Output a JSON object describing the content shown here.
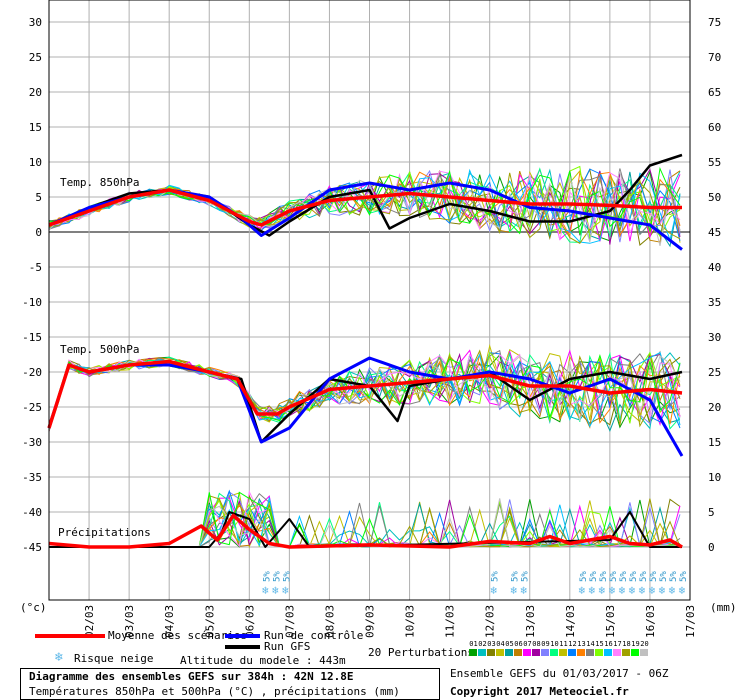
{
  "chart_data": {
    "type": "line",
    "title": "Diagramme des ensembles GEFS sur 384h : 42N 12.8E",
    "subtitle": "Températures 850hPa et 500hPa (°C) , précipitations (mm)",
    "left_axis_label": "(°c)",
    "right_axis_label": "(mm)",
    "left_ticks": [
      30,
      25,
      20,
      15,
      10,
      5,
      0,
      -5,
      -10,
      -15,
      -20,
      -25,
      -30,
      -35,
      -40,
      -45
    ],
    "right_ticks": [
      75,
      70,
      65,
      60,
      55,
      50,
      45,
      40,
      35,
      30,
      25,
      20,
      15,
      10,
      5,
      0
    ],
    "x_ticks": [
      "02/03",
      "03/03",
      "04/03",
      "05/03",
      "06/03",
      "07/03",
      "08/03",
      "09/03",
      "10/03",
      "11/03",
      "12/03",
      "13/03",
      "14/03",
      "15/03",
      "16/03",
      "17/03"
    ],
    "labels": {
      "t850": "Temp. 850hPa",
      "t500": "Temp. 500hPa",
      "precip": "Précipitations"
    },
    "ensemble_mean_850": [
      [
        0,
        1
      ],
      [
        1,
        3
      ],
      [
        2,
        5
      ],
      [
        3,
        6
      ],
      [
        4,
        4.5
      ],
      [
        4.5,
        3
      ],
      [
        5,
        1.5
      ],
      [
        5.3,
        1
      ],
      [
        6,
        3
      ],
      [
        7,
        4.5
      ],
      [
        8,
        5
      ],
      [
        9,
        5.5
      ],
      [
        10,
        5
      ],
      [
        11,
        4.5
      ],
      [
        12,
        4
      ],
      [
        13,
        4
      ],
      [
        14,
        3.8
      ],
      [
        15,
        3.5
      ],
      [
        15.8,
        3.5
      ]
    ],
    "control_run_850": [
      [
        0,
        1
      ],
      [
        1,
        3.5
      ],
      [
        2,
        5
      ],
      [
        3,
        6
      ],
      [
        4,
        5
      ],
      [
        4.8,
        2
      ],
      [
        5.3,
        -0.5
      ],
      [
        6,
        2
      ],
      [
        7,
        6
      ],
      [
        8,
        7
      ],
      [
        9,
        6
      ],
      [
        10,
        7
      ],
      [
        11,
        6
      ],
      [
        12,
        3.5
      ],
      [
        13,
        3
      ],
      [
        14,
        2
      ],
      [
        15,
        1
      ],
      [
        15.8,
        -2.5
      ]
    ],
    "gfs_run_850": [
      [
        0,
        1
      ],
      [
        1,
        3.5
      ],
      [
        2,
        5.5
      ],
      [
        3,
        6
      ],
      [
        4,
        5
      ],
      [
        5,
        1
      ],
      [
        5.5,
        -0.5
      ],
      [
        6,
        1.5
      ],
      [
        7,
        5
      ],
      [
        8,
        6
      ],
      [
        8.5,
        0.5
      ],
      [
        9,
        2
      ],
      [
        10,
        4
      ],
      [
        11,
        3
      ],
      [
        12,
        1.5
      ],
      [
        13,
        1.5
      ],
      [
        14,
        3
      ],
      [
        14.5,
        6
      ],
      [
        15,
        9.5
      ],
      [
        15.8,
        11
      ]
    ],
    "ensemble_mean_500": [
      [
        0,
        -28
      ],
      [
        0.5,
        -19
      ],
      [
        1,
        -20
      ],
      [
        2,
        -19
      ],
      [
        3,
        -18.5
      ],
      [
        4,
        -20
      ],
      [
        4.7,
        -21
      ],
      [
        5.2,
        -26
      ],
      [
        5.7,
        -26
      ],
      [
        6,
        -25
      ],
      [
        7,
        -22.5
      ],
      [
        8,
        -22
      ],
      [
        9,
        -21.5
      ],
      [
        10,
        -21
      ],
      [
        11,
        -20.5
      ],
      [
        12,
        -22
      ],
      [
        13,
        -22
      ],
      [
        14,
        -23
      ],
      [
        15,
        -22.5
      ],
      [
        15.8,
        -23
      ]
    ],
    "control_run_500": [
      [
        0,
        -28
      ],
      [
        0.5,
        -19
      ],
      [
        1,
        -20
      ],
      [
        2,
        -19
      ],
      [
        3,
        -19
      ],
      [
        4,
        -20
      ],
      [
        4.7,
        -21
      ],
      [
        5.3,
        -30
      ],
      [
        6,
        -28
      ],
      [
        7,
        -21
      ],
      [
        8,
        -18
      ],
      [
        9,
        -20
      ],
      [
        10,
        -21
      ],
      [
        11,
        -20
      ],
      [
        12,
        -21
      ],
      [
        13,
        -23
      ],
      [
        14,
        -21
      ],
      [
        15,
        -24
      ],
      [
        15.8,
        -32
      ]
    ],
    "gfs_run_500": [
      [
        0,
        -28
      ],
      [
        0.5,
        -19
      ],
      [
        1,
        -20
      ],
      [
        2,
        -19
      ],
      [
        3,
        -18.5
      ],
      [
        4,
        -20
      ],
      [
        4.8,
        -21
      ],
      [
        5.3,
        -30
      ],
      [
        6,
        -26
      ],
      [
        7,
        -21
      ],
      [
        8,
        -22
      ],
      [
        8.7,
        -27
      ],
      [
        9,
        -22
      ],
      [
        10,
        -21
      ],
      [
        11,
        -20
      ],
      [
        12,
        -24
      ],
      [
        13,
        -21
      ],
      [
        14,
        -20
      ],
      [
        15,
        -21
      ],
      [
        15.8,
        -20
      ]
    ],
    "ensemble_mean_precip_mm": [
      [
        0,
        0.5
      ],
      [
        1,
        0
      ],
      [
        2,
        0
      ],
      [
        3,
        0.5
      ],
      [
        3.8,
        3
      ],
      [
        4.2,
        1
      ],
      [
        4.6,
        4.5
      ],
      [
        5,
        2.5
      ],
      [
        5.5,
        0.5
      ],
      [
        6,
        0
      ],
      [
        8,
        0.3
      ],
      [
        10,
        0
      ],
      [
        11,
        0.8
      ],
      [
        12,
        0.5
      ],
      [
        12.5,
        1.5
      ],
      [
        13,
        0.5
      ],
      [
        14,
        1.5
      ],
      [
        14.5,
        0.5
      ],
      [
        15,
        0.3
      ],
      [
        15.5,
        1
      ],
      [
        15.8,
        0
      ]
    ],
    "gfs_run_precip_mm": [
      [
        0,
        0
      ],
      [
        4,
        0
      ],
      [
        4.3,
        2
      ],
      [
        4.5,
        5
      ],
      [
        5,
        4
      ],
      [
        5.4,
        0
      ],
      [
        6,
        4
      ],
      [
        6.5,
        0
      ],
      [
        14,
        1
      ],
      [
        14.5,
        5
      ],
      [
        15,
        0
      ],
      [
        15.8,
        0
      ]
    ],
    "snow_risk_labels": [
      {
        "day": 5.4,
        "text": "5%"
      },
      {
        "day": 5.65,
        "text": "5%"
      },
      {
        "day": 5.9,
        "text": "5%"
      },
      {
        "day": 11.1,
        "text": "5%"
      },
      {
        "day": 11.6,
        "text": "5%"
      },
      {
        "day": 11.85,
        "text": "5%"
      },
      {
        "day": 13.3,
        "text": "5%"
      },
      {
        "day": 13.55,
        "text": "5%"
      },
      {
        "day": 13.8,
        "text": "5%"
      },
      {
        "day": 14.05,
        "text": "5%"
      },
      {
        "day": 14.3,
        "text": "5%"
      },
      {
        "day": 14.55,
        "text": "5%"
      },
      {
        "day": 14.8,
        "text": "5%"
      },
      {
        "day": 15.05,
        "text": "5%"
      },
      {
        "day": 15.3,
        "text": "5%"
      },
      {
        "day": 15.55,
        "text": "5%"
      },
      {
        "day": 15.8,
        "text": "5%"
      }
    ],
    "perturbation_colors": [
      "#00a000",
      "#00c0c0",
      "#808000",
      "#c0c000",
      "#00a0a0",
      "#c08000",
      "#ff00ff",
      "#a000a0",
      "#8080ff",
      "#00ff80",
      "#c0c000",
      "#0080ff",
      "#ff8000",
      "#808080",
      "#80ff00",
      "#00c0ff",
      "#ff80ff",
      "#a0a000",
      "#00ff00",
      "#c0c0c0"
    ]
  },
  "legend": {
    "mean_label": "Moyenne des scénarios",
    "control_label": "Run de contrôle",
    "gfs_label": "Run GFS",
    "snow_label": "Risque neige",
    "altitude_label": "Altitude du modele : 443m",
    "perturbations_label": "20 Perturbations",
    "perturbation_numbers": [
      "01",
      "02",
      "03",
      "04",
      "05",
      "06",
      "07",
      "08",
      "09",
      "10",
      "11",
      "12",
      "13",
      "14",
      "15",
      "16",
      "17",
      "18",
      "19",
      "20"
    ],
    "ensemble_info": "Ensemble GEFS du 01/03/2017 - 06Z",
    "copyright": "Copyright 2017 Meteociel.fr"
  },
  "colors": {
    "mean": "#ff0000",
    "control": "#0000ff",
    "gfs": "#000000",
    "snow": "#5fb8e8",
    "grid": "#b0b0b0"
  }
}
